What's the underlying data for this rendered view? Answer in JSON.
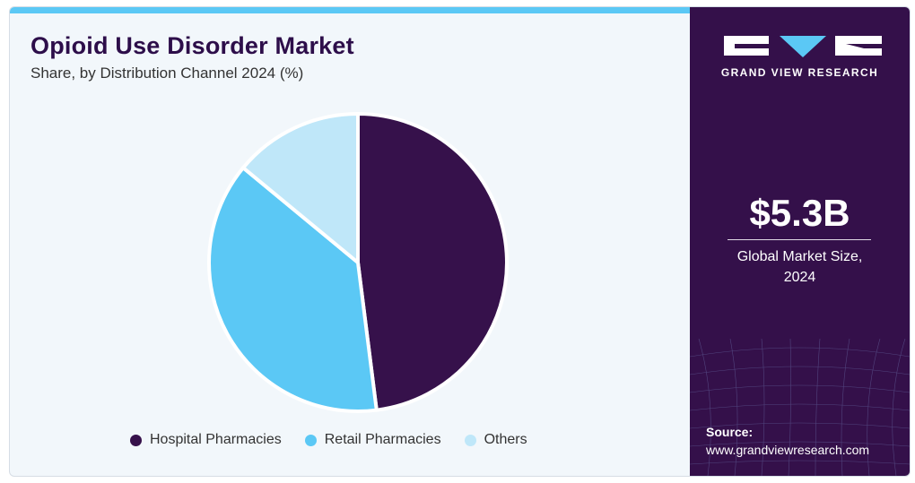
{
  "header": {
    "title": "Opioid Use Disorder Market",
    "subtitle": "Share, by Distribution Channel 2024 (%)"
  },
  "colors": {
    "accent": "#5bc8f5",
    "sidebar": "#34104a",
    "title": "#2d0e4a"
  },
  "chart_data": {
    "type": "pie",
    "title": "Opioid Use Disorder Market",
    "subtitle": "Share, by Distribution Channel 2024 (%)",
    "categories": [
      "Hospital Pharmacies",
      "Retail Pharmacies",
      "Others"
    ],
    "values": [
      48,
      38,
      14
    ],
    "colors": [
      "#36114b",
      "#5bc8f5",
      "#bfe7f9"
    ],
    "legend": "bottom"
  },
  "sidebar": {
    "logo_icon": "gvr-logo-icon",
    "logo_text": "GRAND VIEW RESEARCH",
    "market_value": "$5.3B",
    "market_label_line1": "Global Market Size,",
    "market_label_line2": "2024",
    "source_label": "Source:",
    "source_url": "www.grandviewresearch.com"
  }
}
